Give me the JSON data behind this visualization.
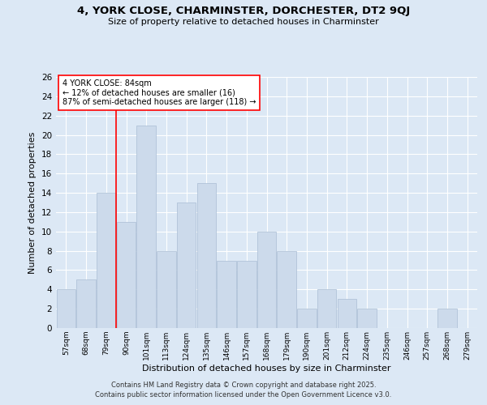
{
  "title": "4, YORK CLOSE, CHARMINSTER, DORCHESTER, DT2 9QJ",
  "subtitle": "Size of property relative to detached houses in Charminster",
  "xlabel": "Distribution of detached houses by size in Charminster",
  "ylabel": "Number of detached properties",
  "categories": [
    "57sqm",
    "68sqm",
    "79sqm",
    "90sqm",
    "101sqm",
    "113sqm",
    "124sqm",
    "135sqm",
    "146sqm",
    "157sqm",
    "168sqm",
    "179sqm",
    "190sqm",
    "201sqm",
    "212sqm",
    "224sqm",
    "235sqm",
    "246sqm",
    "257sqm",
    "268sqm",
    "279sqm"
  ],
  "values": [
    4,
    5,
    14,
    11,
    21,
    8,
    13,
    15,
    7,
    7,
    10,
    8,
    2,
    4,
    3,
    2,
    0,
    0,
    0,
    2,
    0
  ],
  "bar_color": "#ccdaeb",
  "bar_edge_color": "#aabdd4",
  "background_color": "#dce8f5",
  "red_line_x": 2.5,
  "annotation_title": "4 YORK CLOSE: 84sqm",
  "annotation_line1": "← 12% of detached houses are smaller (16)",
  "annotation_line2": "87% of semi-detached houses are larger (118) →",
  "ylim": [
    0,
    26
  ],
  "yticks": [
    0,
    2,
    4,
    6,
    8,
    10,
    12,
    14,
    16,
    18,
    20,
    22,
    24,
    26
  ],
  "footer_line1": "Contains HM Land Registry data © Crown copyright and database right 2025.",
  "footer_line2": "Contains public sector information licensed under the Open Government Licence v3.0."
}
